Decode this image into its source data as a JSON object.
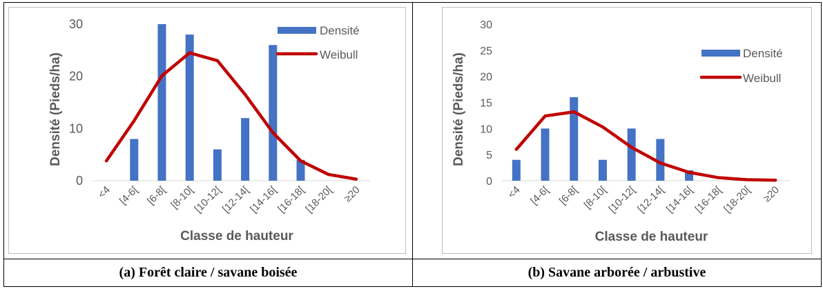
{
  "charts": [
    {
      "caption": "(a) Forêt claire / savane boisée",
      "chart_data": {
        "type": "bar",
        "categories": [
          "<4",
          "[4-6[",
          "[6-8[",
          "[8-10[",
          "[10-12[",
          "[12-14[",
          "[14-16[",
          "[16-18[",
          "[18-20[",
          "≥20"
        ],
        "series": [
          {
            "name": "Densité",
            "kind": "bar",
            "color": "#4472C4",
            "values": [
              0,
              8,
              30,
              28,
              6,
              12,
              26,
              4,
              0,
              0
            ]
          },
          {
            "name": "Weibull",
            "kind": "line",
            "color": "#C00000",
            "values": [
              3.8,
              11.5,
              20.1,
              24.5,
              23,
              16.5,
              9.2,
              3.8,
              1.2,
              0.3
            ]
          }
        ],
        "xlabel": "Classe de hauteur",
        "ylabel": "Densité (Pieds/ha)",
        "ylim": [
          0,
          30
        ],
        "yticks": [
          0,
          10,
          20,
          30
        ],
        "legend": "top-right"
      }
    },
    {
      "caption": "(b) Savane arborée / arbustive",
      "chart_data": {
        "type": "bar",
        "categories": [
          "<4",
          "[4-6[",
          "[6-8[",
          "[8-10[",
          "[10-12[",
          "[12-14[",
          "[14-16[",
          "[16-18[",
          "[18-20[",
          "≥20"
        ],
        "series": [
          {
            "name": "Densité",
            "kind": "bar",
            "color": "#4472C4",
            "values": [
              4,
              10,
              16,
              4,
              10,
              8,
              2,
              0,
              0,
              0
            ]
          },
          {
            "name": "Weibull",
            "kind": "line",
            "color": "#C00000",
            "values": [
              6,
              12.4,
              13.2,
              10.3,
              6.4,
              3.4,
              1.6,
              0.6,
              0.2,
              0.1
            ]
          }
        ],
        "xlabel": "Classe de hauteur",
        "ylabel": "Densité (Pieds/ha)",
        "ylim": [
          0,
          30
        ],
        "yticks": [
          0,
          5,
          10,
          15,
          20,
          25,
          30
        ],
        "legend": "right"
      }
    }
  ]
}
